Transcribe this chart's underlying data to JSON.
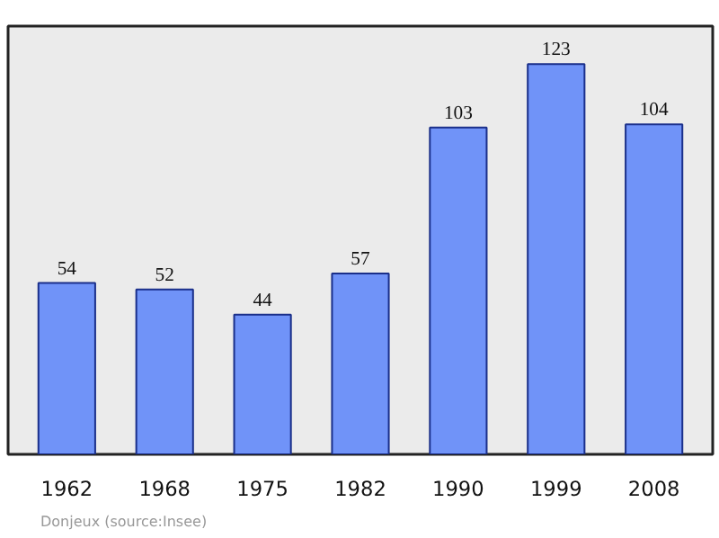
{
  "chart_data": {
    "type": "bar",
    "categories": [
      "1962",
      "1968",
      "1975",
      "1982",
      "1990",
      "1999",
      "2008"
    ],
    "values": [
      54,
      52,
      44,
      57,
      103,
      123,
      104
    ],
    "color": "#7093f8",
    "data_labels": true,
    "ylim": [
      0,
      135
    ],
    "grid": false,
    "tick_labels": "x",
    "annotations": [
      "Donjeux    (source:Insee)"
    ]
  }
}
